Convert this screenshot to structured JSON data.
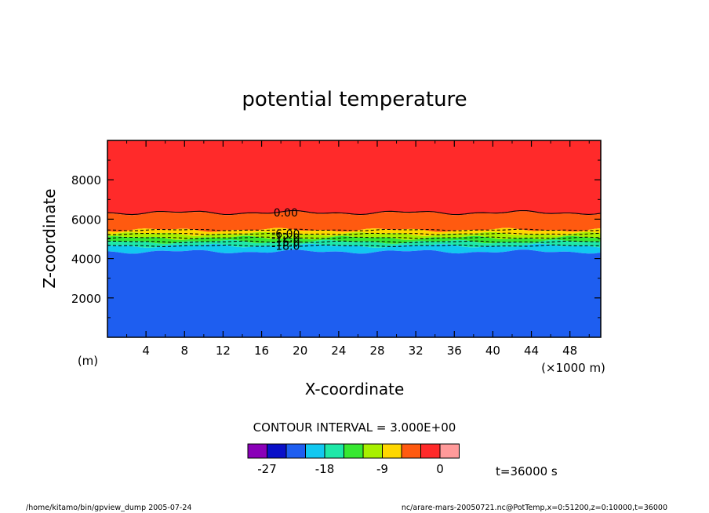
{
  "chart_data": {
    "type": "heatmap",
    "title": "potential temperature",
    "xlabel": "X-coordinate",
    "ylabel": "Z-coordinate",
    "x_unit": "(×1000 m)",
    "y_unit": "(m)",
    "xlim": [
      0,
      51200
    ],
    "ylim": [
      0,
      10000
    ],
    "x_ticks": [
      {
        "value": 4000,
        "label": "4"
      },
      {
        "value": 8000,
        "label": "8"
      },
      {
        "value": 12000,
        "label": "12"
      },
      {
        "value": 16000,
        "label": "16"
      },
      {
        "value": 20000,
        "label": "20"
      },
      {
        "value": 24000,
        "label": "24"
      },
      {
        "value": 28000,
        "label": "28"
      },
      {
        "value": 32000,
        "label": "32"
      },
      {
        "value": 36000,
        "label": "36"
      },
      {
        "value": 40000,
        "label": "40"
      },
      {
        "value": 44000,
        "label": "44"
      },
      {
        "value": 48000,
        "label": "48"
      }
    ],
    "y_ticks": [
      {
        "value": 2000,
        "label": "2000"
      },
      {
        "value": 4000,
        "label": "4000"
      },
      {
        "value": 6000,
        "label": "6000"
      },
      {
        "value": 8000,
        "label": "8000"
      }
    ],
    "bands": [
      {
        "from": 6300,
        "to": 10000,
        "color": "#ff2a2a"
      },
      {
        "from": 5450,
        "to": 6300,
        "color": "#ff5a10"
      },
      {
        "from": 5250,
        "to": 5450,
        "color": "#ffd700"
      },
      {
        "from": 5050,
        "to": 5250,
        "color": "#a8f000"
      },
      {
        "from": 4850,
        "to": 5050,
        "color": "#38e832"
      },
      {
        "from": 4650,
        "to": 4850,
        "color": "#1ee8a8"
      },
      {
        "from": 4350,
        "to": 4650,
        "color": "#12c8f0"
      },
      {
        "from": 0,
        "to": 4350,
        "color": "#1e5ef0"
      }
    ],
    "contours": [
      {
        "z": 6330,
        "style": "solid",
        "label": "0.00"
      },
      {
        "z": 5450,
        "style": "dashed",
        "label": ""
      },
      {
        "z": 5250,
        "style": "dashed",
        "label": "-6.00"
      },
      {
        "z": 5050,
        "style": "dashed",
        "label": "-12.0"
      },
      {
        "z": 4850,
        "style": "dashed",
        "label": "-15.0"
      },
      {
        "z": 4650,
        "style": "dashed",
        "label": "-18.0"
      }
    ],
    "contour_interval_text": "CONTOUR INTERVAL = 3.000E+00",
    "colorbar": {
      "colors": [
        "#8a00b8",
        "#0a10c8",
        "#1e5ef0",
        "#12c8f0",
        "#1ee8a8",
        "#38e832",
        "#a8f000",
        "#ffd700",
        "#ff5a10",
        "#ff2a2a",
        "#ff9a9a"
      ],
      "labels": [
        {
          "after_box": 1,
          "text": "-27"
        },
        {
          "after_box": 4,
          "text": "-18"
        },
        {
          "after_box": 7,
          "text": "-9"
        },
        {
          "after_box": 10,
          "text": "0"
        }
      ]
    },
    "time_label": "t=36000 s"
  },
  "footer": {
    "left": "/home/kitamo/bin/gpview_dump  2005-07-24",
    "right": "nc/arare-mars-20050721.nc@PotTemp,x=0:51200,z=0:10000,t=36000"
  }
}
